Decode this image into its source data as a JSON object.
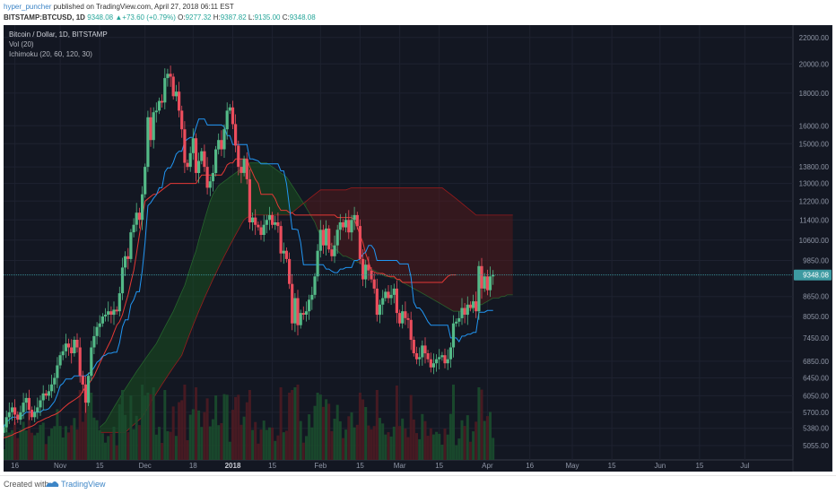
{
  "header": {
    "author": "hyper_puncher",
    "published": "published on TradingView.com, April 27, 2018 06:11 EST",
    "symbol": "BITSTAMP:BTCUSD, 1D",
    "last": "9348.08",
    "change": "+73.60 (+0.79%)",
    "o_label": "O:",
    "o_value": "9277.32",
    "h_label": "H:",
    "h_value": "9387.82",
    "l_label": "L:",
    "l_value": "9135.00",
    "c_label": "C:",
    "c_value": "9348.08"
  },
  "footer": {
    "created_with": "Created with",
    "brand": "TradingView"
  },
  "colors": {
    "background": "#131722",
    "up": "#53b987",
    "down": "#eb4d5c",
    "tenkan": "#2196f3",
    "kijun": "#e53935",
    "cloud_bull": "#1b5e20",
    "cloud_bear": "#5d1a1a",
    "price_line": "#3d9aa1"
  },
  "chart_data": {
    "type": "candlestick",
    "title": "Bitcoin / Dollar, 1D, BITSTAMP",
    "indicators": [
      "Vol (20)",
      "Ichimoku (20, 60, 120, 30)"
    ],
    "y_scale": "log",
    "ylim": [
      4800,
      23000
    ],
    "y_ticks": [
      22000,
      20000,
      18000,
      16000,
      15000,
      13800,
      13000,
      12200,
      11400,
      10600,
      9850,
      9348.08,
      8650,
      8050,
      7450,
      6850,
      6450,
      6050,
      5700,
      5380,
      5055
    ],
    "y_tick_labels": [
      "22000.00",
      "20000.00",
      "18000.00",
      "16000.00",
      "15000.00",
      "13800.00",
      "13000.00",
      "12200.00",
      "11400.00",
      "10600.00",
      "9850.00",
      "9348.08",
      "8650.00",
      "8050.00",
      "7450.00",
      "6850.00",
      "6450.00",
      "6050.00",
      "5700.00",
      "5380.00",
      "5055.00"
    ],
    "last_price": 9348.08,
    "x_range": [
      "2017-10-12",
      "2018-07-18"
    ],
    "x_ticks": [
      {
        "date": "2017-10-16",
        "label": "16"
      },
      {
        "date": "2017-11-01",
        "label": "Nov"
      },
      {
        "date": "2017-11-15",
        "label": "15"
      },
      {
        "date": "2017-12-01",
        "label": "Dec"
      },
      {
        "date": "2017-12-18",
        "label": "18"
      },
      {
        "date": "2018-01-01",
        "label": "2018"
      },
      {
        "date": "2018-01-15",
        "label": "15"
      },
      {
        "date": "2018-02-01",
        "label": "Feb"
      },
      {
        "date": "2018-02-15",
        "label": "15"
      },
      {
        "date": "2018-03-01",
        "label": "Mar"
      },
      {
        "date": "2018-03-15",
        "label": "15"
      },
      {
        "date": "2018-04-01",
        "label": "Apr"
      },
      {
        "date": "2018-04-16",
        "label": "16"
      },
      {
        "date": "2018-05-01",
        "label": "May"
      },
      {
        "date": "2018-05-15",
        "label": "15"
      },
      {
        "date": "2018-06-01",
        "label": "Jun"
      },
      {
        "date": "2018-06-15",
        "label": "15"
      },
      {
        "date": "2018-07-01",
        "label": "Jul"
      }
    ],
    "closes_start_date": "2017-10-12",
    "closes": [
      5400,
      5600,
      5700,
      5800,
      5650,
      5550,
      5700,
      5900,
      6000,
      5750,
      5600,
      5700,
      5800,
      5950,
      6100,
      6050,
      6150,
      6300,
      6450,
      6750,
      7000,
      7100,
      7300,
      7200,
      7050,
      7400,
      7200,
      6500,
      6300,
      5900,
      6500,
      7200,
      7500,
      7750,
      7850,
      8050,
      8100,
      8200,
      8100,
      8250,
      8200,
      8750,
      9600,
      10000,
      9900,
      10900,
      11200,
      11700,
      11400,
      12500,
      13800,
      16500,
      15200,
      16800,
      16900,
      17500,
      17400,
      19000,
      19300,
      19100,
      17800,
      18100,
      16900,
      15800,
      14000,
      13800,
      14500,
      15300,
      13500,
      14100,
      14600,
      13800,
      12800,
      13100,
      13500,
      14700,
      15200,
      14700,
      15800,
      16900,
      17100,
      16100,
      14900,
      13800,
      13500,
      14200,
      13200,
      11300,
      11500,
      11200,
      11100,
      10800,
      11200,
      11400,
      11600,
      11200,
      11300,
      11150,
      10100,
      10200,
      9900,
      9050,
      7850,
      8600,
      7800,
      8150,
      8100,
      8200,
      8550,
      8700,
      9300,
      10200,
      11000,
      10400,
      11050,
      10250,
      10000,
      10400,
      11000,
      11300,
      11100,
      11400,
      10900,
      11400,
      11600,
      11150,
      9900,
      9200,
      9700,
      9500,
      9200,
      8900,
      8100,
      8400,
      8600,
      8800,
      8600,
      8700,
      8900,
      8150,
      7850,
      8200,
      8000,
      7950,
      7400,
      7050,
      6900,
      6950,
      7250,
      7050,
      6900,
      6700,
      6800,
      6900,
      6950,
      7000,
      6800,
      6900,
      7200,
      7850,
      7900,
      8000,
      8300,
      8100,
      8400,
      8300,
      8500,
      8200,
      9650,
      8900,
      9300,
      8850,
      9300,
      9348.08
    ],
    "kijun_start_date": "2017-10-12",
    "kijun": [
      5200,
      5210,
      5230,
      5250,
      5280,
      5300,
      5320,
      5350,
      5380,
      5400,
      5420,
      5450,
      5500,
      5520,
      5550,
      5580,
      5600,
      5630,
      5650,
      5680,
      5720,
      5780,
      5830,
      5880,
      5920,
      5960,
      6000,
      6050,
      6150,
      6250,
      6300,
      6400,
      6500,
      6650,
      6800,
      6950,
      7100,
      7250,
      7400,
      7600,
      7800,
      7900,
      8100,
      8400,
      8700,
      9100,
      9500,
      10100,
      10800,
      11500,
      12200,
      12300,
      12400,
      12500,
      12500,
      12600,
      12700,
      12800,
      12900,
      13000,
      13000,
      13000,
      13000,
      13000,
      13000,
      13000,
      13000,
      13000,
      13000,
      13200,
      13400,
      13400,
      13400,
      13400,
      13400,
      13400,
      13400,
      13400,
      13600,
      13900,
      14000,
      14000,
      14200,
      14200,
      14200,
      14200,
      14200,
      13800,
      13500,
      13200,
      13000,
      12500,
      12500,
      12500,
      12500,
      12500,
      12300,
      12000,
      11800,
      11800,
      11800,
      11700,
      11700,
      11600,
      11600,
      11600,
      11600,
      11600,
      11600,
      11600,
      11600,
      11600,
      11600,
      11600,
      11600,
      11600,
      11600,
      11600,
      11500,
      11500,
      11500,
      11500,
      11500,
      11500,
      11400,
      11100,
      10800,
      10500,
      10100,
      9800,
      9500,
      9450,
      9400,
      9400,
      9400,
      9350,
      9300,
      9300,
      9300,
      9200,
      9200,
      9100,
      9100,
      9100,
      9100,
      9100,
      9100,
      9100,
      9100,
      9100,
      9100,
      9100,
      9100,
      9100,
      9100,
      9100,
      9200,
      9300,
      9350,
      9350,
      9350
    ],
    "cloud_start_date": "2017-11-15",
    "span_a": [
      5400,
      5450,
      5500,
      5600,
      5700,
      5800,
      5900,
      6000,
      6100,
      6200,
      6300,
      6400,
      6500,
      6600,
      6700,
      6800,
      6900,
      7000,
      7100,
      7200,
      7300,
      7450,
      7600,
      7750,
      7900,
      8050,
      8200,
      8400,
      8600,
      8800,
      9000,
      9300,
      9600,
      9900,
      10200,
      10600,
      11000,
      11400,
      11800,
      12200,
      12500,
      12700,
      12900,
      13000,
      13100,
      13200,
      13300,
      13400,
      13500,
      13600,
      13700,
      13800,
      13900,
      14000,
      14000,
      14000,
      14000,
      14000,
      14000,
      14000,
      13900,
      13800,
      13700,
      13600,
      13500,
      13400,
      13300,
      13100,
      12900,
      12700,
      12500,
      12300,
      12100,
      11900,
      11700,
      11500,
      11300,
      11000,
      10800,
      10700,
      10600,
      10500,
      10400,
      10300,
      10200,
      10100,
      10000,
      10000,
      9950,
      9900,
      9850,
      9800,
      9750,
      9700,
      9650,
      9600,
      9550,
      9500,
      9450,
      9400,
      9350,
      9300,
      9300,
      9250,
      9250,
      9200,
      9150,
      9100,
      9050,
      9000,
      8950,
      8900,
      8850,
      8800,
      8750,
      8700,
      8650,
      8600,
      8550,
      8500,
      8450,
      8400,
      8350,
      8300,
      8250,
      8200,
      8200,
      8200,
      8200,
      8200,
      8200,
      8250,
      8300,
      8350,
      8400,
      8400,
      8450,
      8500,
      8550,
      8600,
      8600,
      8600,
      8650,
      8650,
      8700,
      8700,
      8700
    ],
    "span_b": [
      5300,
      5300,
      5300,
      5300,
      5300,
      5300,
      5300,
      5300,
      5300,
      5300,
      5350,
      5400,
      5450,
      5500,
      5550,
      5600,
      5700,
      5800,
      5900,
      6000,
      6100,
      6200,
      6300,
      6400,
      6500,
      6600,
      6700,
      6800,
      6900,
      7000,
      7200,
      7400,
      7600,
      7800,
      8000,
      8200,
      8400,
      8600,
      8800,
      9000,
      9200,
      9400,
      9600,
      9800,
      10000,
      10200,
      10400,
      10600,
      10800,
      11000,
      11200,
      11400,
      11500,
      11550,
      11600,
      11600,
      11600,
      11600,
      11600,
      11600,
      11600,
      11600,
      11600,
      11600,
      11600,
      11600,
      11600,
      11600,
      11700,
      11800,
      11900,
      12000,
      12100,
      12200,
      12300,
      12400,
      12500,
      12600,
      12700,
      12700,
      12700,
      12700,
      12700,
      12700,
      12700,
      12700,
      12700,
      12700,
      12750,
      12800,
      12800,
      12800,
      12800,
      12800,
      12800,
      12800,
      12800,
      12800,
      12800,
      12800,
      12800,
      12800,
      12800,
      12800,
      12800,
      12800,
      12800,
      12800,
      12800,
      12800,
      12800,
      12800,
      12800,
      12800,
      12800,
      12800,
      12800,
      12800,
      12800,
      12800,
      12800,
      12800,
      12700,
      12600,
      12500,
      12400,
      12300,
      12200,
      12100,
      12000,
      11900,
      11800,
      11700,
      11600,
      11600,
      11600,
      11600,
      11600,
      11600,
      11600,
      11600,
      11600,
      11600,
      11600,
      11600,
      11600,
      11600
    ]
  }
}
